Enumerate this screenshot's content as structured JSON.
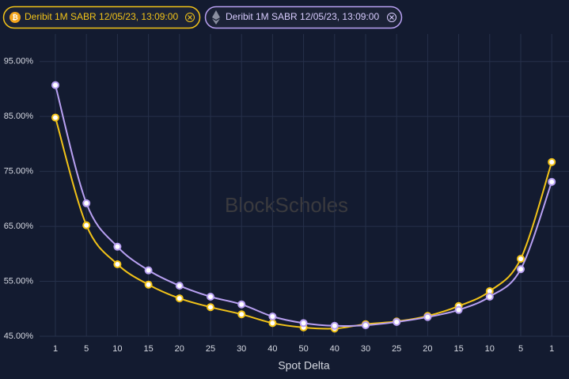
{
  "chart_data": {
    "type": "line",
    "xlabel": "Spot Delta",
    "watermark": "BlockScholes",
    "categories": [
      "1",
      "5",
      "10",
      "15",
      "20",
      "25",
      "30",
      "40",
      "50",
      "40",
      "30",
      "25",
      "20",
      "15",
      "10",
      "5",
      "1"
    ],
    "series": [
      {
        "name": "Deribit 1M SABR 12/05/23, 13:09:00",
        "color": "#f2c318",
        "values": [
          84.8,
          65.2,
          58.1,
          54.4,
          51.9,
          50.3,
          49.0,
          47.4,
          46.6,
          46.4,
          47.2,
          47.7,
          48.7,
          50.5,
          53.2,
          59.1,
          76.7
        ]
      },
      {
        "name": "Deribit 1M SABR 12/05/23, 13:09:00",
        "color": "#b8a0f2",
        "values": [
          90.7,
          69.2,
          61.3,
          57.0,
          54.2,
          52.2,
          50.8,
          48.6,
          47.4,
          46.9,
          47.0,
          47.6,
          48.5,
          49.8,
          52.2,
          57.2,
          73.1
        ]
      }
    ],
    "ylim": [
      45,
      100
    ],
    "yticks": [
      {
        "value": 45,
        "label": "45.00%"
      },
      {
        "value": 55,
        "label": "55.00%"
      },
      {
        "value": 65,
        "label": "65.00%"
      },
      {
        "value": 75,
        "label": "75.00%"
      },
      {
        "value": 85,
        "label": "85.00%"
      },
      {
        "value": 95,
        "label": "95.00%"
      }
    ],
    "grid": true
  }
}
